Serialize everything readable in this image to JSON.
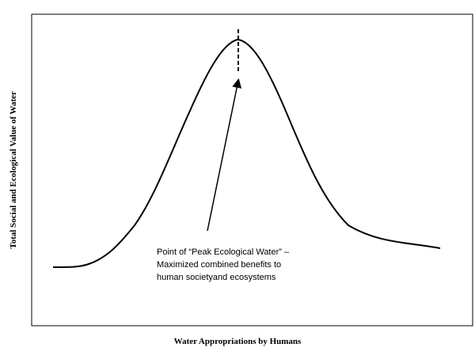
{
  "axes": {
    "x_label": "Water Appropriations  by Humans",
    "y_label": "Total Social and Ecological Value of Water"
  },
  "annotation": {
    "lines": [
      "Point of “Peak Ecological Water” –",
      "Maximized  combined benefits to",
      "human societyand ecosystems"
    ]
  }
}
